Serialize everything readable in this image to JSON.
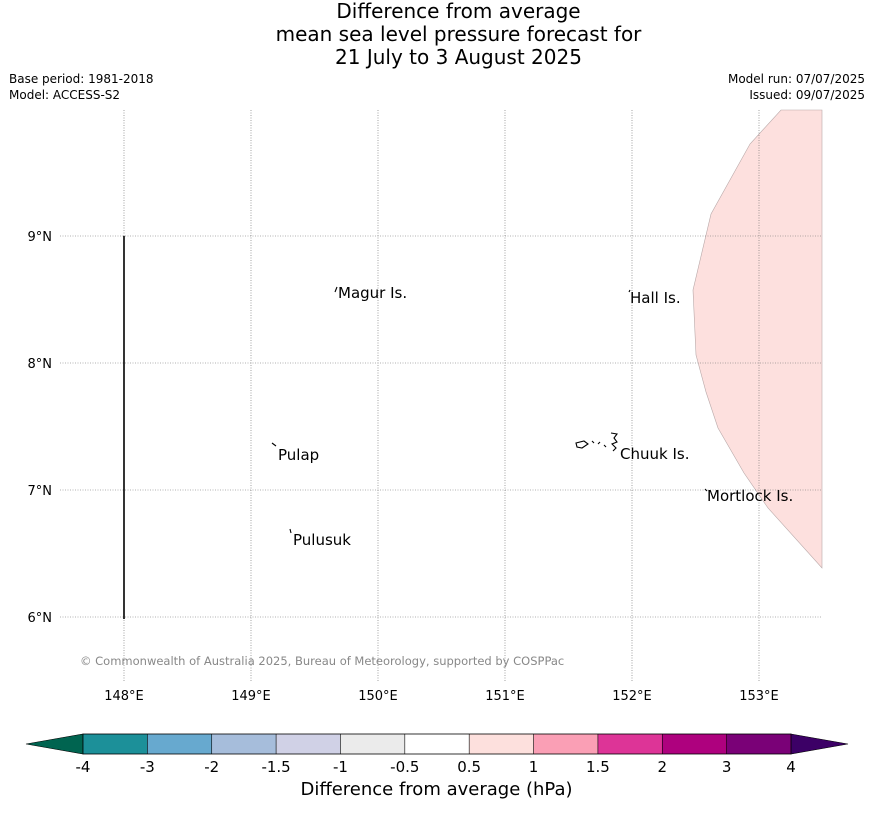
{
  "title": {
    "line1": "Difference from average",
    "line2": "mean sea level pressure forecast for",
    "line3": "21 July to 3 August 2025"
  },
  "meta": {
    "base_period": "Base period: 1981-2018",
    "model": "Model: ACCESS-S2",
    "model_run": "Model run: 07/07/2025",
    "issued": "Issued: 09/07/2025"
  },
  "map": {
    "lon_ticks": [
      "148°E",
      "149°E",
      "150°E",
      "151°E",
      "152°E",
      "153°E"
    ],
    "lat_ticks": [
      "9°N",
      "8°N",
      "7°N",
      "6°N"
    ],
    "places": [
      {
        "name": "Magur Is.",
        "lon": 149.67,
        "lat": 8.55
      },
      {
        "name": "Hall Is.",
        "lon": 151.98,
        "lat": 8.52
      },
      {
        "name": "Pulap",
        "lon": 149.17,
        "lat": 7.3
      },
      {
        "name": "Chuuk Is.",
        "lon": 151.85,
        "lat": 7.3
      },
      {
        "name": "Mortlock Is.",
        "lon": 152.58,
        "lat": 6.97
      },
      {
        "name": "Pulusuk",
        "lon": 149.3,
        "lat": 6.65
      }
    ],
    "copyright": "© Commonwealth of Australia 2025, Bureau of Meteorology, supported by COSPPac",
    "anomaly_fill_color": "#fde0de"
  },
  "legend": {
    "title": "Difference from average (hPa)",
    "tick_labels": [
      "-4",
      "-3",
      "-2",
      "-1.5",
      "-1",
      "-0.5",
      "0.5",
      "1",
      "1.5",
      "2",
      "3",
      "4"
    ],
    "under_color": "#006450",
    "over_color": "#3c0066",
    "colors": [
      "#1c9099",
      "#67a9cf",
      "#a6bddb",
      "#d0d1e6",
      "#ebebeb",
      "#ffffff",
      "#fde0dd",
      "#fa9fb5",
      "#dd3497",
      "#ae017e",
      "#7a0177"
    ]
  }
}
